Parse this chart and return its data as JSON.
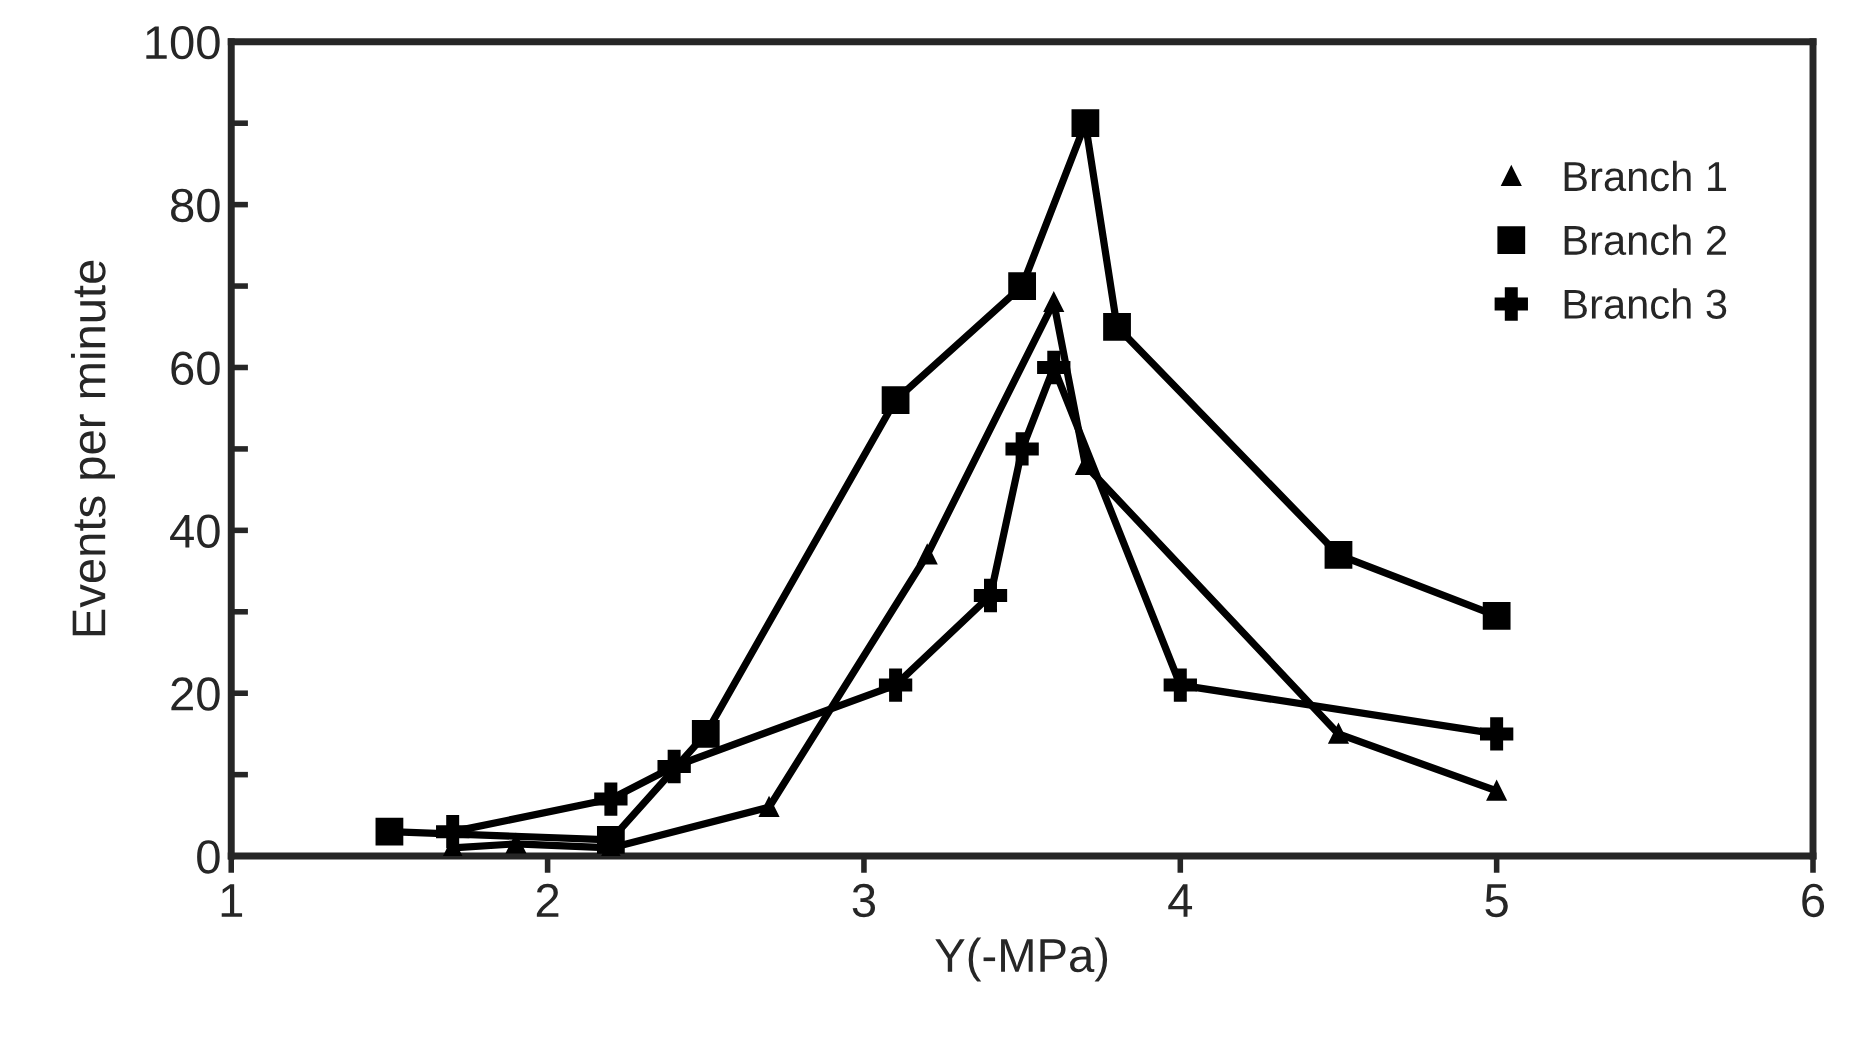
{
  "chart_data": {
    "type": "line",
    "xlabel": "Y(-MPa)",
    "ylabel": "Events per minute",
    "xlim": [
      1,
      6
    ],
    "ylim": [
      0,
      100
    ],
    "xticks": [
      1,
      2,
      3,
      4,
      5,
      6
    ],
    "yticks": [
      0,
      {
        "value": 10,
        "label": null
      },
      20,
      {
        "value": 30,
        "label": null
      },
      40,
      {
        "value": 50,
        "label": null
      },
      60,
      {
        "value": 70,
        "label": null
      },
      80,
      {
        "value": 90,
        "label": null
      },
      100
    ],
    "grid": false,
    "legend": "top right",
    "line_style": "solid",
    "series": [
      {
        "name": "Branch 1",
        "color": "#000000",
        "marker": "triangle",
        "x": [
          1.7,
          1.9,
          2.2,
          2.7,
          3.2,
          3.6,
          3.7,
          4.5,
          5.0
        ],
        "values": [
          1,
          1.5,
          1,
          6,
          37,
          68,
          48,
          15,
          8
        ]
      },
      {
        "name": "Branch 2",
        "color": "#000000",
        "marker": "square",
        "x": [
          1.5,
          2.2,
          2.5,
          3.1,
          3.5,
          3.7,
          3.8,
          4.5,
          5.0
        ],
        "values": [
          3,
          2,
          15,
          56,
          70,
          90,
          65,
          37,
          29.5
        ]
      },
      {
        "name": "Branch 3",
        "color": "#000000",
        "marker": "cross",
        "x": [
          1.7,
          2.2,
          2.4,
          3.1,
          3.4,
          3.5,
          3.6,
          4.0,
          5.0
        ],
        "values": [
          3,
          7,
          11,
          21,
          32,
          50,
          60,
          21,
          15
        ]
      }
    ]
  }
}
